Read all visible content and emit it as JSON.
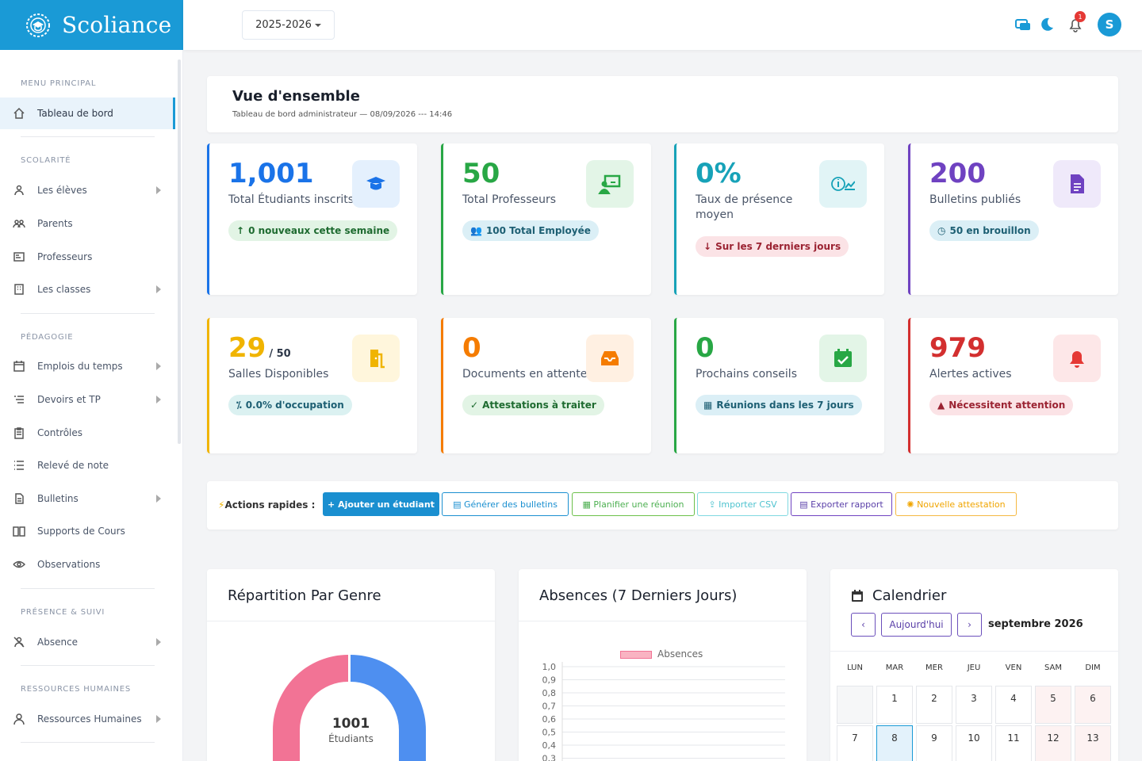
{
  "brand": {
    "name": "Scoliance"
  },
  "topbar": {
    "year": "2025-2026",
    "notifications": "1",
    "avatar": "S"
  },
  "sidebar": {
    "sections": [
      "MENU PRINCIPAL",
      "SCOLARITÉ",
      "PÉDAGOGIE",
      "PRÉSENCE & SUIVI",
      "RESSOURCES HUMAINES"
    ],
    "items": [
      "Tableau de bord",
      "Les élèves",
      "Parents",
      "Professeurs",
      "Les classes",
      "Emplois du temps",
      "Devoirs et TP",
      "Contrôles",
      "Relevé de note",
      "Bulletins",
      "Supports de Cours",
      "Observations",
      "Absence",
      "Ressources Humaines"
    ]
  },
  "header": {
    "title": "Vue d'ensemble",
    "subtitle": "Tableau de bord administrateur — 08/09/2026 --- 14:46"
  },
  "stats": [
    {
      "value": "1,001",
      "label": "Total Étudiants inscrits",
      "pill": "0 nouveaux cette semaine",
      "color": "#1a73e8",
      "icon": "graduate-icon"
    },
    {
      "value": "50",
      "label": "Total Professeurs",
      "pill": "100 Total Employée",
      "color": "#28a745",
      "icon": "teacher-board-icon"
    },
    {
      "value": "0%",
      "label": "Taux de présence moyen",
      "pill": "Sur les 7 derniers jours",
      "color": "#17a2b8",
      "icon": "info-chart-icon"
    },
    {
      "value": "200",
      "label": "Bulletins publiés",
      "pill": "50 en brouillon",
      "color": "#6f42c1",
      "icon": "document-icon"
    },
    {
      "value": "29",
      "suffix": "/ 50",
      "label": "Salles Disponibles",
      "pill": "0.0% d'occupation",
      "color": "#f0b400",
      "icon": "door-icon"
    },
    {
      "value": "0",
      "label": "Documents en attente",
      "pill": "Attestations à traiter",
      "color": "#f57c00",
      "icon": "inbox-icon"
    },
    {
      "value": "0",
      "label": "Prochains conseils",
      "pill": "Réunions dans les 7 jours",
      "color": "#28a745",
      "icon": "calendar-check-icon"
    },
    {
      "value": "979",
      "label": "Alertes actives",
      "pill": "Nécessitent attention",
      "color": "#d32f2f",
      "icon": "bell-icon"
    }
  ],
  "actions": {
    "label": "Actions rapides :",
    "buttons": [
      "Ajouter un étudiant",
      "Générer des bulletins",
      "Planifier une réunion",
      "Importer CSV",
      "Exporter rapport",
      "Nouvelle attestation"
    ]
  },
  "gender": {
    "title": "Répartition Par Genre",
    "total": "1001",
    "unit": "Étudiants"
  },
  "absences": {
    "title": "Absences (7 Derniers Jours)",
    "legend": "Absences",
    "ticks": [
      "1,0",
      "0,9",
      "0,8",
      "0,7",
      "0,6",
      "0,5",
      "0,4",
      "0,3"
    ]
  },
  "calendar": {
    "title": "Calendrier",
    "today_btn": "Aujourd'hui",
    "month": "septembre 2026",
    "dow": [
      "LUN",
      "MAR",
      "MER",
      "JEU",
      "VEN",
      "SAM",
      "DIM"
    ],
    "week1": [
      "",
      "1",
      "2",
      "3",
      "4",
      "5",
      "6"
    ],
    "week2": [
      "7",
      "8",
      "9",
      "10",
      "11",
      "12",
      "13"
    ]
  },
  "chart_data": {
    "type": "bar",
    "title": "Absences (7 Derniers Jours)",
    "series": [
      {
        "name": "Absences",
        "values": []
      }
    ],
    "ylim": [
      0,
      1.0
    ]
  }
}
